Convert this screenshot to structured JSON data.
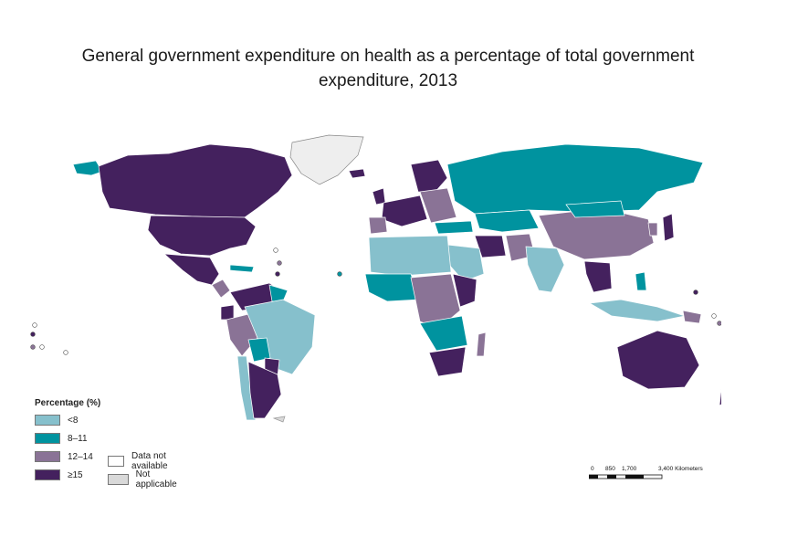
{
  "title_line1": "General government expenditure on health as a percentage of total government",
  "title_line2": "expenditure, 2013",
  "legend": {
    "title": "Percentage (%)",
    "items": [
      {
        "label": "<8",
        "color": "#86c0cc"
      },
      {
        "label": "8–11",
        "color": "#00939f"
      },
      {
        "label": "12–14",
        "color": "#8a7396"
      },
      {
        "label": "≥15",
        "color": "#44215e"
      },
      {
        "label": "Data not available",
        "color": "#ffffff"
      },
      {
        "label": "Not applicable",
        "color": "#d9d9d9"
      }
    ]
  },
  "scale": {
    "ticks": [
      "0",
      "850",
      "1,700",
      "3,400 Kilometers"
    ]
  }
}
